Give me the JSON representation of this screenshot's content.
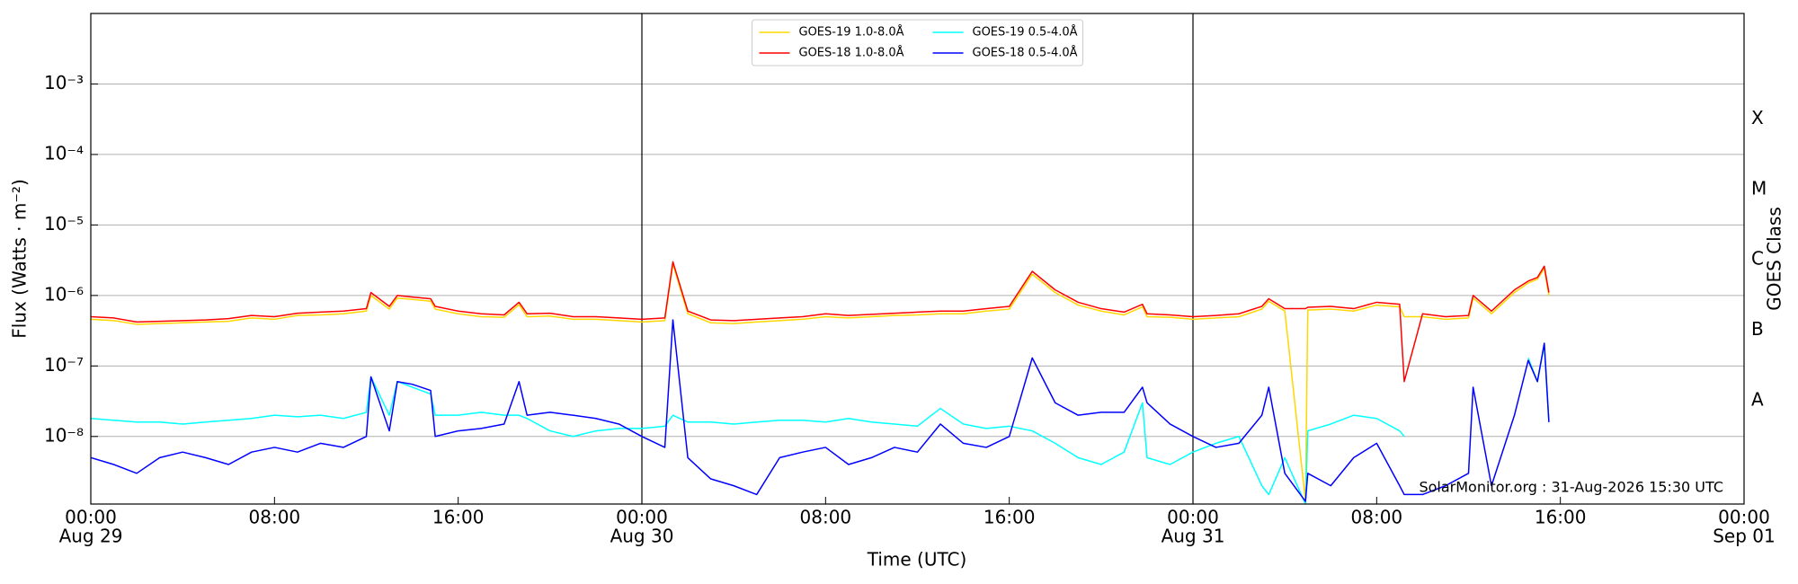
{
  "chart_data": {
    "type": "line",
    "y_label": "Flux (Watts · m⁻²)",
    "x_label": "Time (UTC)",
    "y2_label": "GOES Class",
    "annotation": "SolarMonitor.org : 31-Aug-2026 15:30 UTC",
    "log_y": true,
    "grid": true,
    "legend": "upper center",
    "legend_columns": 2,
    "xlim": [
      0,
      72
    ],
    "xticks": [
      {
        "value": 0,
        "label": "00:00",
        "date": "Aug 29"
      },
      {
        "value": 8,
        "label": "08:00"
      },
      {
        "value": 16,
        "label": "16:00"
      },
      {
        "value": 24,
        "label": "00:00",
        "date": "Aug 30"
      },
      {
        "value": 32,
        "label": "08:00"
      },
      {
        "value": 40,
        "label": "16:00"
      },
      {
        "value": 48,
        "label": "00:00",
        "date": "Aug 31"
      },
      {
        "value": 56,
        "label": "08:00"
      },
      {
        "value": 64,
        "label": "16:00"
      },
      {
        "value": 72,
        "label": "00:00",
        "date": "Sep 01"
      }
    ],
    "vlines": [
      24,
      48
    ],
    "ylim": [
      1.1e-09,
      0.01
    ],
    "yticks": [
      {
        "value": 0.001,
        "label": "10⁻³"
      },
      {
        "value": 0.0001,
        "label": "10⁻⁴"
      },
      {
        "value": 1e-05,
        "label": "10⁻⁵"
      },
      {
        "value": 1e-06,
        "label": "10⁻⁶"
      },
      {
        "value": 1e-07,
        "label": "10⁻⁷"
      },
      {
        "value": 1e-08,
        "label": "10⁻⁸"
      }
    ],
    "y2lim": [
      1.1e-09,
      0.01
    ],
    "y2ticks": [
      {
        "value": 0.00032,
        "label": "X"
      },
      {
        "value": 3.2e-05,
        "label": "M"
      },
      {
        "value": 3.2e-06,
        "label": "C"
      },
      {
        "value": 3.2e-07,
        "label": "B"
      },
      {
        "value": 3.2e-08,
        "label": "A"
      }
    ],
    "x": [
      0,
      1,
      2,
      3,
      4,
      5,
      6,
      7,
      8,
      9,
      10,
      11,
      12,
      12.2,
      13,
      13.35,
      14,
      14.8,
      15,
      16,
      17,
      18,
      18.65,
      19,
      20,
      21,
      22,
      23,
      24,
      25,
      25.35,
      26,
      27,
      28,
      29,
      30,
      31,
      32,
      33,
      34,
      35,
      36,
      37,
      38,
      39,
      40,
      41,
      42,
      43,
      44,
      45,
      45.8,
      46,
      47,
      48,
      49,
      50,
      51,
      51.3,
      52,
      52.9,
      53,
      54,
      55,
      56,
      57,
      57.2,
      58,
      59,
      60,
      60.2,
      61,
      62,
      62.6,
      63,
      63.3,
      63.5
    ],
    "series": [
      {
        "name": "GOES-19 1.0-8.0Å",
        "color": "#ffd700",
        "values": [
          4.6e-07,
          4.4e-07,
          3.9e-07,
          4e-07,
          4.1e-07,
          4.2e-07,
          4.3e-07,
          4.8e-07,
          4.6e-07,
          5.2e-07,
          5.3e-07,
          5.5e-07,
          6e-07,
          1e-06,
          6.4e-07,
          9.2e-07,
          8.8e-07,
          8.3e-07,
          6.4e-07,
          5.5e-07,
          5e-07,
          4.9e-07,
          7.4e-07,
          5e-07,
          5.1e-07,
          4.6e-07,
          4.6e-07,
          4.4e-07,
          4.2e-07,
          4.4e-07,
          2.8e-06,
          5.5e-07,
          4.1e-07,
          4e-07,
          4.2e-07,
          4.4e-07,
          4.6e-07,
          5e-07,
          4.8e-07,
          5e-07,
          5.2e-07,
          5.3e-07,
          5.5e-07,
          5.5e-07,
          6e-07,
          6.4e-07,
          2e-06,
          1.1e-06,
          7.3e-07,
          6e-07,
          5.3e-07,
          6.9e-07,
          5e-07,
          4.9e-07,
          4.6e-07,
          4.8e-07,
          5e-07,
          6.4e-07,
          8.3e-07,
          6e-07,
          1.2e-09,
          6.2e-07,
          6.4e-07,
          6e-07,
          7.3e-07,
          6.9e-07,
          5e-07,
          5e-07,
          4.6e-07,
          4.8e-07,
          9.2e-07,
          5.5e-07,
          1.1e-06,
          1.5e-06,
          1.7e-06,
          2.4e-06,
          1e-06
        ]
      },
      {
        "name": "GOES-18 1.0-8.0Å",
        "color": "#ff0000",
        "values": [
          5e-07,
          4.8e-07,
          4.2e-07,
          4.3e-07,
          4.4e-07,
          4.5e-07,
          4.7e-07,
          5.2e-07,
          5e-07,
          5.6e-07,
          5.8e-07,
          6e-07,
          6.5e-07,
          1.1e-06,
          7e-07,
          1e-06,
          9.5e-07,
          9e-07,
          7e-07,
          6e-07,
          5.5e-07,
          5.3e-07,
          8e-07,
          5.5e-07,
          5.6e-07,
          5e-07,
          5e-07,
          4.8e-07,
          4.6e-07,
          4.8e-07,
          3e-06,
          6e-07,
          4.5e-07,
          4.4e-07,
          4.6e-07,
          4.8e-07,
          5e-07,
          5.5e-07,
          5.2e-07,
          5.4e-07,
          5.6e-07,
          5.8e-07,
          6e-07,
          6e-07,
          6.5e-07,
          7e-07,
          2.2e-06,
          1.2e-06,
          8e-07,
          6.5e-07,
          5.8e-07,
          7.5e-07,
          5.5e-07,
          5.3e-07,
          5e-07,
          5.2e-07,
          5.5e-07,
          7e-07,
          9e-07,
          6.5e-07,
          6.5e-07,
          6.8e-07,
          7e-07,
          6.5e-07,
          8e-07,
          7.5e-07,
          6e-08,
          5.5e-07,
          5e-07,
          5.2e-07,
          1e-06,
          6e-07,
          1.2e-06,
          1.6e-06,
          1.8e-06,
          2.6e-06,
          1.1e-06
        ]
      },
      {
        "name": "GOES-19 0.5-4.0Å",
        "color": "#00ffff",
        "values": [
          1.8e-08,
          1.7e-08,
          1.6e-08,
          1.6e-08,
          1.5e-08,
          1.6e-08,
          1.7e-08,
          1.8e-08,
          2e-08,
          1.9e-08,
          2e-08,
          1.8e-08,
          2.2e-08,
          7e-08,
          2e-08,
          6e-08,
          5e-08,
          4e-08,
          2e-08,
          2e-08,
          2.2e-08,
          2e-08,
          2e-08,
          1.8e-08,
          1.2e-08,
          1e-08,
          1.2e-08,
          1.3e-08,
          1.3e-08,
          1.4e-08,
          2e-08,
          1.6e-08,
          1.6e-08,
          1.5e-08,
          1.6e-08,
          1.7e-08,
          1.7e-08,
          1.6e-08,
          1.8e-08,
          1.6e-08,
          1.5e-08,
          1.4e-08,
          2.5e-08,
          1.5e-08,
          1.3e-08,
          1.4e-08,
          1.2e-08,
          8e-09,
          5e-09,
          4e-09,
          6e-09,
          3e-08,
          5e-09,
          4e-09,
          6e-09,
          8e-09,
          1e-08,
          2e-09,
          1.5e-09,
          5e-09,
          1.1e-09,
          1.2e-08,
          1.5e-08,
          2e-08,
          1.8e-08,
          1.2e-08,
          1e-08,
          null,
          null,
          null,
          null,
          null,
          null,
          1.3e-07,
          6e-08,
          2e-07,
          1.6e-08
        ]
      },
      {
        "name": "GOES-18 0.5-4.0Å",
        "color": "#0000ff",
        "values": [
          5e-09,
          4e-09,
          3e-09,
          5e-09,
          6e-09,
          5e-09,
          4e-09,
          6e-09,
          7e-09,
          6e-09,
          8e-09,
          7e-09,
          1e-08,
          7e-08,
          1.2e-08,
          6e-08,
          5.5e-08,
          4.5e-08,
          1e-08,
          1.2e-08,
          1.3e-08,
          1.5e-08,
          6e-08,
          2e-08,
          2.2e-08,
          2e-08,
          1.8e-08,
          1.5e-08,
          1e-08,
          7e-09,
          4.5e-07,
          5e-09,
          2.5e-09,
          2e-09,
          1.5e-09,
          5e-09,
          6e-09,
          7e-09,
          4e-09,
          5e-09,
          7e-09,
          6e-09,
          1.5e-08,
          8e-09,
          7e-09,
          1e-08,
          1.3e-07,
          3e-08,
          2e-08,
          2.2e-08,
          2.2e-08,
          5e-08,
          3e-08,
          1.5e-08,
          1e-08,
          7e-09,
          8e-09,
          2e-08,
          5e-08,
          3e-09,
          1.2e-09,
          3e-09,
          2e-09,
          5e-09,
          8e-09,
          2e-09,
          1.5e-09,
          1.5e-09,
          2e-09,
          3e-09,
          5e-08,
          2e-09,
          2e-08,
          1.2e-07,
          6e-08,
          2.1e-07,
          1.6e-08
        ]
      }
    ]
  }
}
